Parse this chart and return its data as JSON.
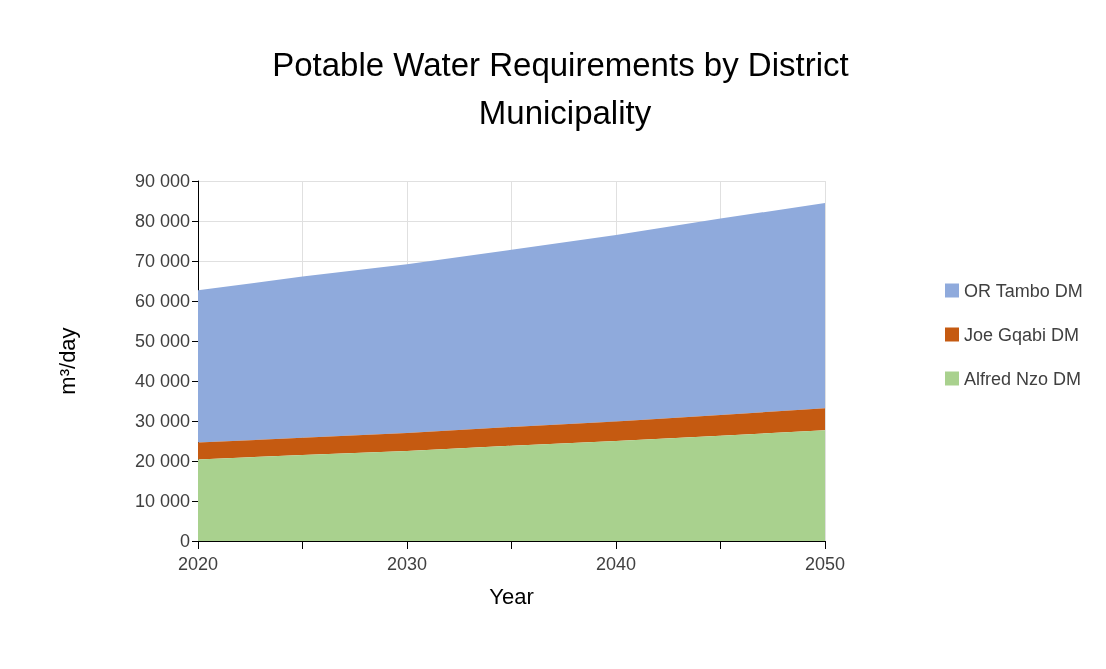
{
  "chart_data": {
    "type": "area",
    "stacked": true,
    "title": "Potable Water Requirements by District Municipality",
    "xlabel": "Year",
    "ylabel": "m³/day",
    "x": [
      2020,
      2025,
      2030,
      2035,
      2040,
      2045,
      2050
    ],
    "series": [
      {
        "name": "Alfred Nzo DM",
        "color": "#a9d18e",
        "values": [
          20400,
          21500,
          22500,
          23800,
          25000,
          26300,
          27700
        ]
      },
      {
        "name": "Joe Gqabi DM",
        "color": "#c55a11",
        "values": [
          4200,
          4300,
          4500,
          4700,
          4900,
          5200,
          5500
        ]
      },
      {
        "name": "OR Tambo DM",
        "color": "#8faadc",
        "values": [
          38100,
          40300,
          42200,
          44300,
          46600,
          49100,
          51300
        ]
      }
    ],
    "xlim": [
      2020,
      2050
    ],
    "xticks": [
      2020,
      {
        "value": 2025,
        "label": null
      },
      2030,
      {
        "value": 2035,
        "label": null
      },
      2040,
      {
        "value": 2045,
        "label": null
      },
      2050
    ],
    "ylim": [
      0,
      90000
    ],
    "yticks": [
      0,
      {
        "value": 10000,
        "label": "10 000"
      },
      {
        "value": 20000,
        "label": "20 000"
      },
      {
        "value": 30000,
        "label": "30 000"
      },
      {
        "value": 40000,
        "label": "40 000"
      },
      {
        "value": 50000,
        "label": "50 000"
      },
      {
        "value": 60000,
        "label": "60 000"
      },
      {
        "value": 70000,
        "label": "70 000"
      },
      {
        "value": 80000,
        "label": "80 000"
      },
      {
        "value": 90000,
        "label": "90 000"
      }
    ],
    "grid": true,
    "legend": "right"
  }
}
